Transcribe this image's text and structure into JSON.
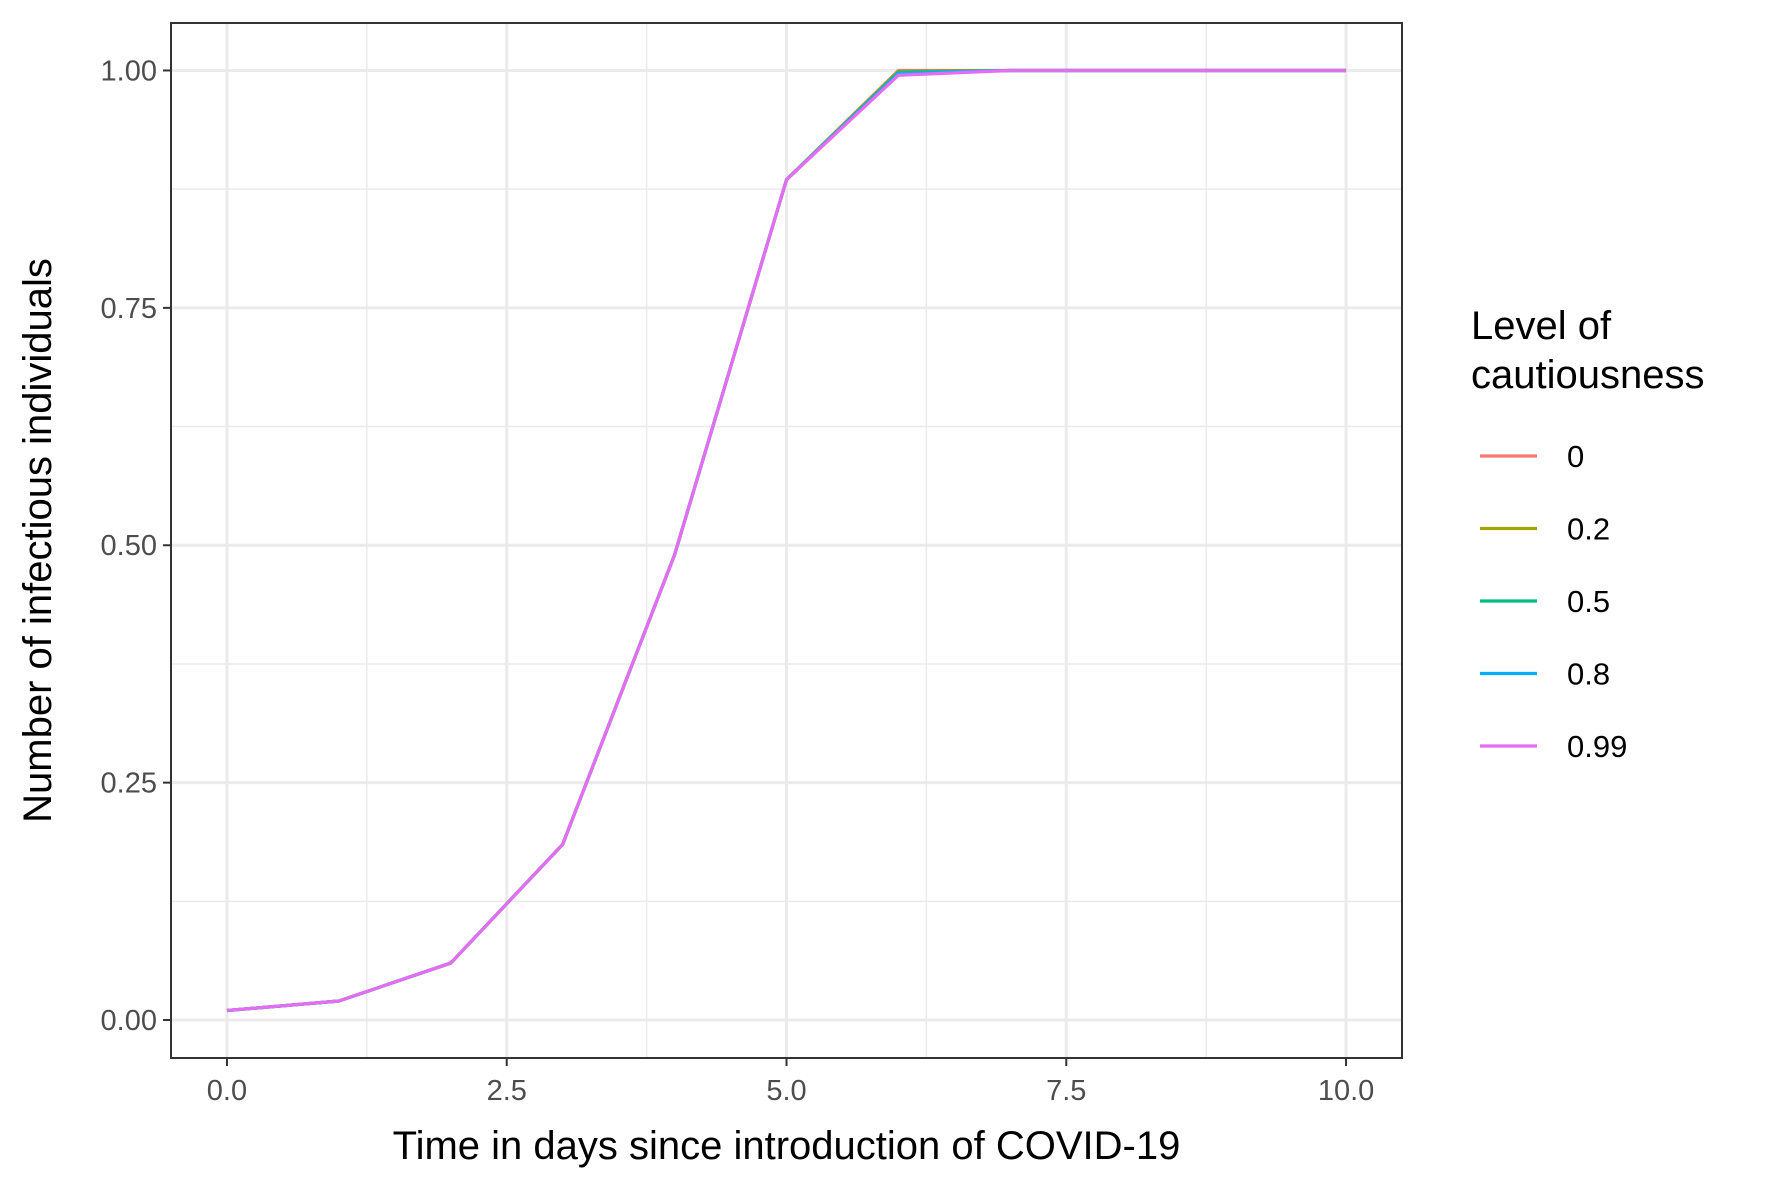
{
  "chart_data": {
    "type": "line",
    "title": "",
    "xlabel": "Time in days since introduction of COVID-19",
    "ylabel": "Number of infectious individuals",
    "xlim": [
      -0.5,
      10.5
    ],
    "ylim": [
      -0.04,
      1.05
    ],
    "x_ticks": [
      0,
      2.5,
      5,
      7.5,
      10
    ],
    "x_tick_labels": [
      "0.0",
      "2.5",
      "5.0",
      "7.5",
      "10.0"
    ],
    "y_ticks": [
      0,
      0.25,
      0.5,
      0.75,
      1
    ],
    "y_tick_labels": [
      "0.00",
      "0.25",
      "0.50",
      "0.75",
      "1.00"
    ],
    "grid": true,
    "legend": {
      "title_lines": [
        "Level of",
        "cautiousness"
      ],
      "placement": "right"
    },
    "x": [
      0,
      1,
      2,
      3,
      4,
      5,
      6,
      7,
      8,
      9,
      10
    ],
    "series": [
      {
        "name": "0",
        "color": "#F8766D",
        "values": [
          0.01,
          0.02,
          0.06,
          0.185,
          0.49,
          0.885,
          1.0,
          1.0,
          1.0,
          1.0,
          1.0
        ]
      },
      {
        "name": "0.2",
        "color": "#A3A500",
        "values": [
          0.01,
          0.02,
          0.06,
          0.185,
          0.49,
          0.885,
          0.999,
          1.0,
          1.0,
          1.0,
          1.0
        ]
      },
      {
        "name": "0.5",
        "color": "#00BF7D",
        "values": [
          0.01,
          0.02,
          0.06,
          0.185,
          0.49,
          0.885,
          0.998,
          1.0,
          1.0,
          1.0,
          1.0
        ]
      },
      {
        "name": "0.8",
        "color": "#00B0F6",
        "values": [
          0.01,
          0.02,
          0.06,
          0.185,
          0.49,
          0.885,
          0.997,
          1.0,
          1.0,
          1.0,
          1.0
        ]
      },
      {
        "name": "0.99",
        "color": "#E76BF3",
        "values": [
          0.01,
          0.02,
          0.06,
          0.185,
          0.49,
          0.885,
          0.995,
          1.0,
          1.0,
          1.0,
          1.0
        ]
      }
    ]
  }
}
